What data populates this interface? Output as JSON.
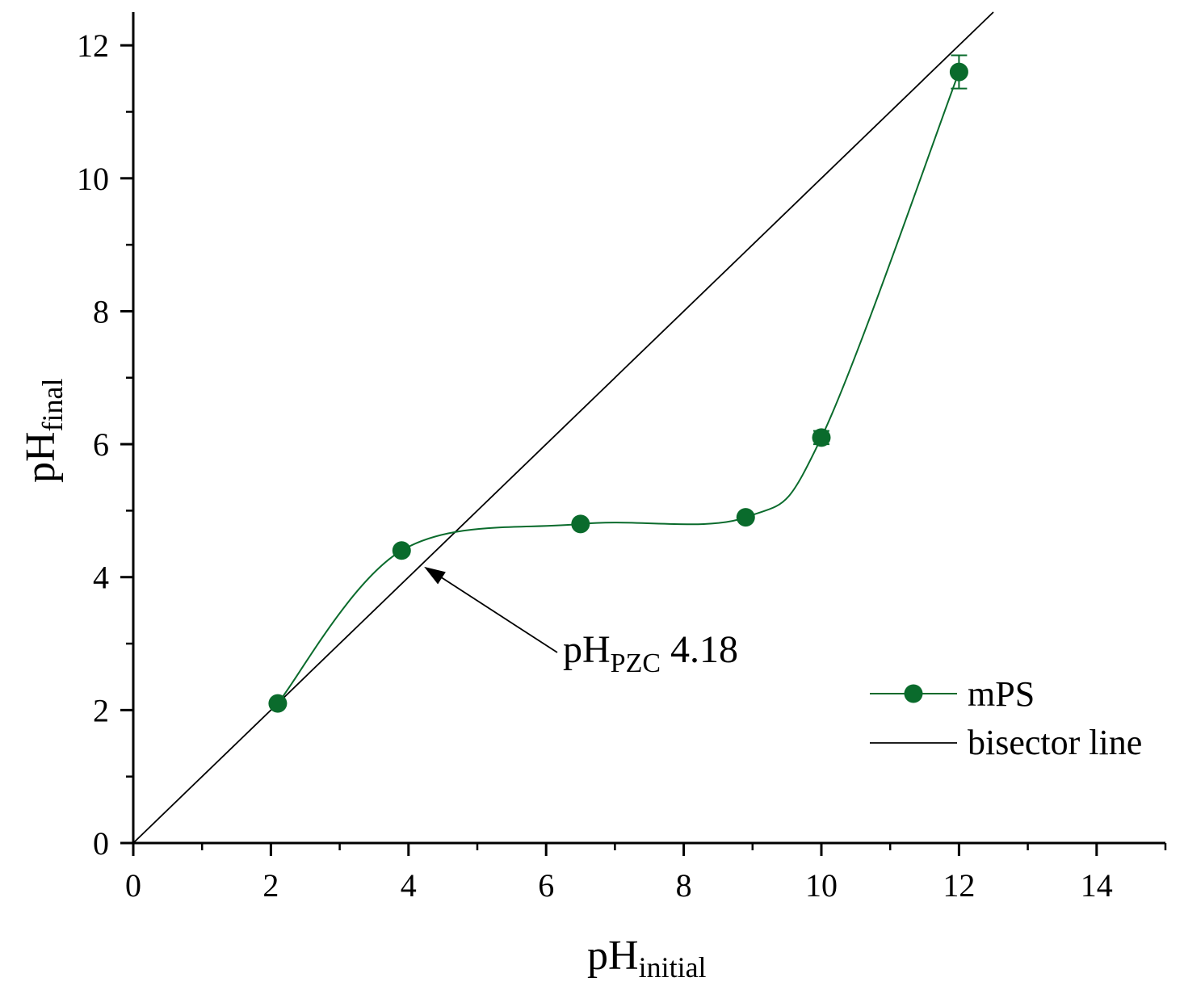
{
  "chart_data": {
    "type": "scatter",
    "title": "",
    "xlabel": {
      "main": "pH",
      "sub": "initial"
    },
    "ylabel": {
      "main": "pH",
      "sub": "final"
    },
    "xlim": [
      0,
      15
    ],
    "ylim": [
      0,
      12.5
    ],
    "xticks": [
      0,
      2,
      4,
      6,
      8,
      10,
      12,
      14
    ],
    "xtick_labels": [
      "0",
      "2",
      "4",
      "6",
      "8",
      "10",
      "12",
      "14"
    ],
    "yticks": [
      0,
      2,
      4,
      6,
      8,
      10,
      12
    ],
    "ytick_labels": [
      "0",
      "2",
      "4",
      "6",
      "8",
      "10",
      "12"
    ],
    "grid": false,
    "series": [
      {
        "name": "mPS",
        "color": "#0a6b2c",
        "style": "markers with smoothed line",
        "x": [
          2.1,
          3.9,
          6.5,
          8.9,
          10.0,
          12.0
        ],
        "y": [
          2.1,
          4.4,
          4.8,
          4.9,
          6.1,
          11.6
        ],
        "y_error": [
          0.05,
          0.05,
          0.05,
          0.05,
          0.1,
          0.25
        ]
      },
      {
        "name": "bisector line",
        "color": "#000000",
        "style": "line",
        "x": [
          0,
          12.5
        ],
        "y": [
          0,
          12.5
        ]
      }
    ],
    "legend": {
      "placement": "bottom-right",
      "entries": [
        "mPS",
        "bisector line"
      ]
    },
    "annotation": {
      "main": "pH",
      "sub": "PZC",
      "value": "4.18",
      "point": [
        4.18,
        4.18
      ]
    }
  }
}
